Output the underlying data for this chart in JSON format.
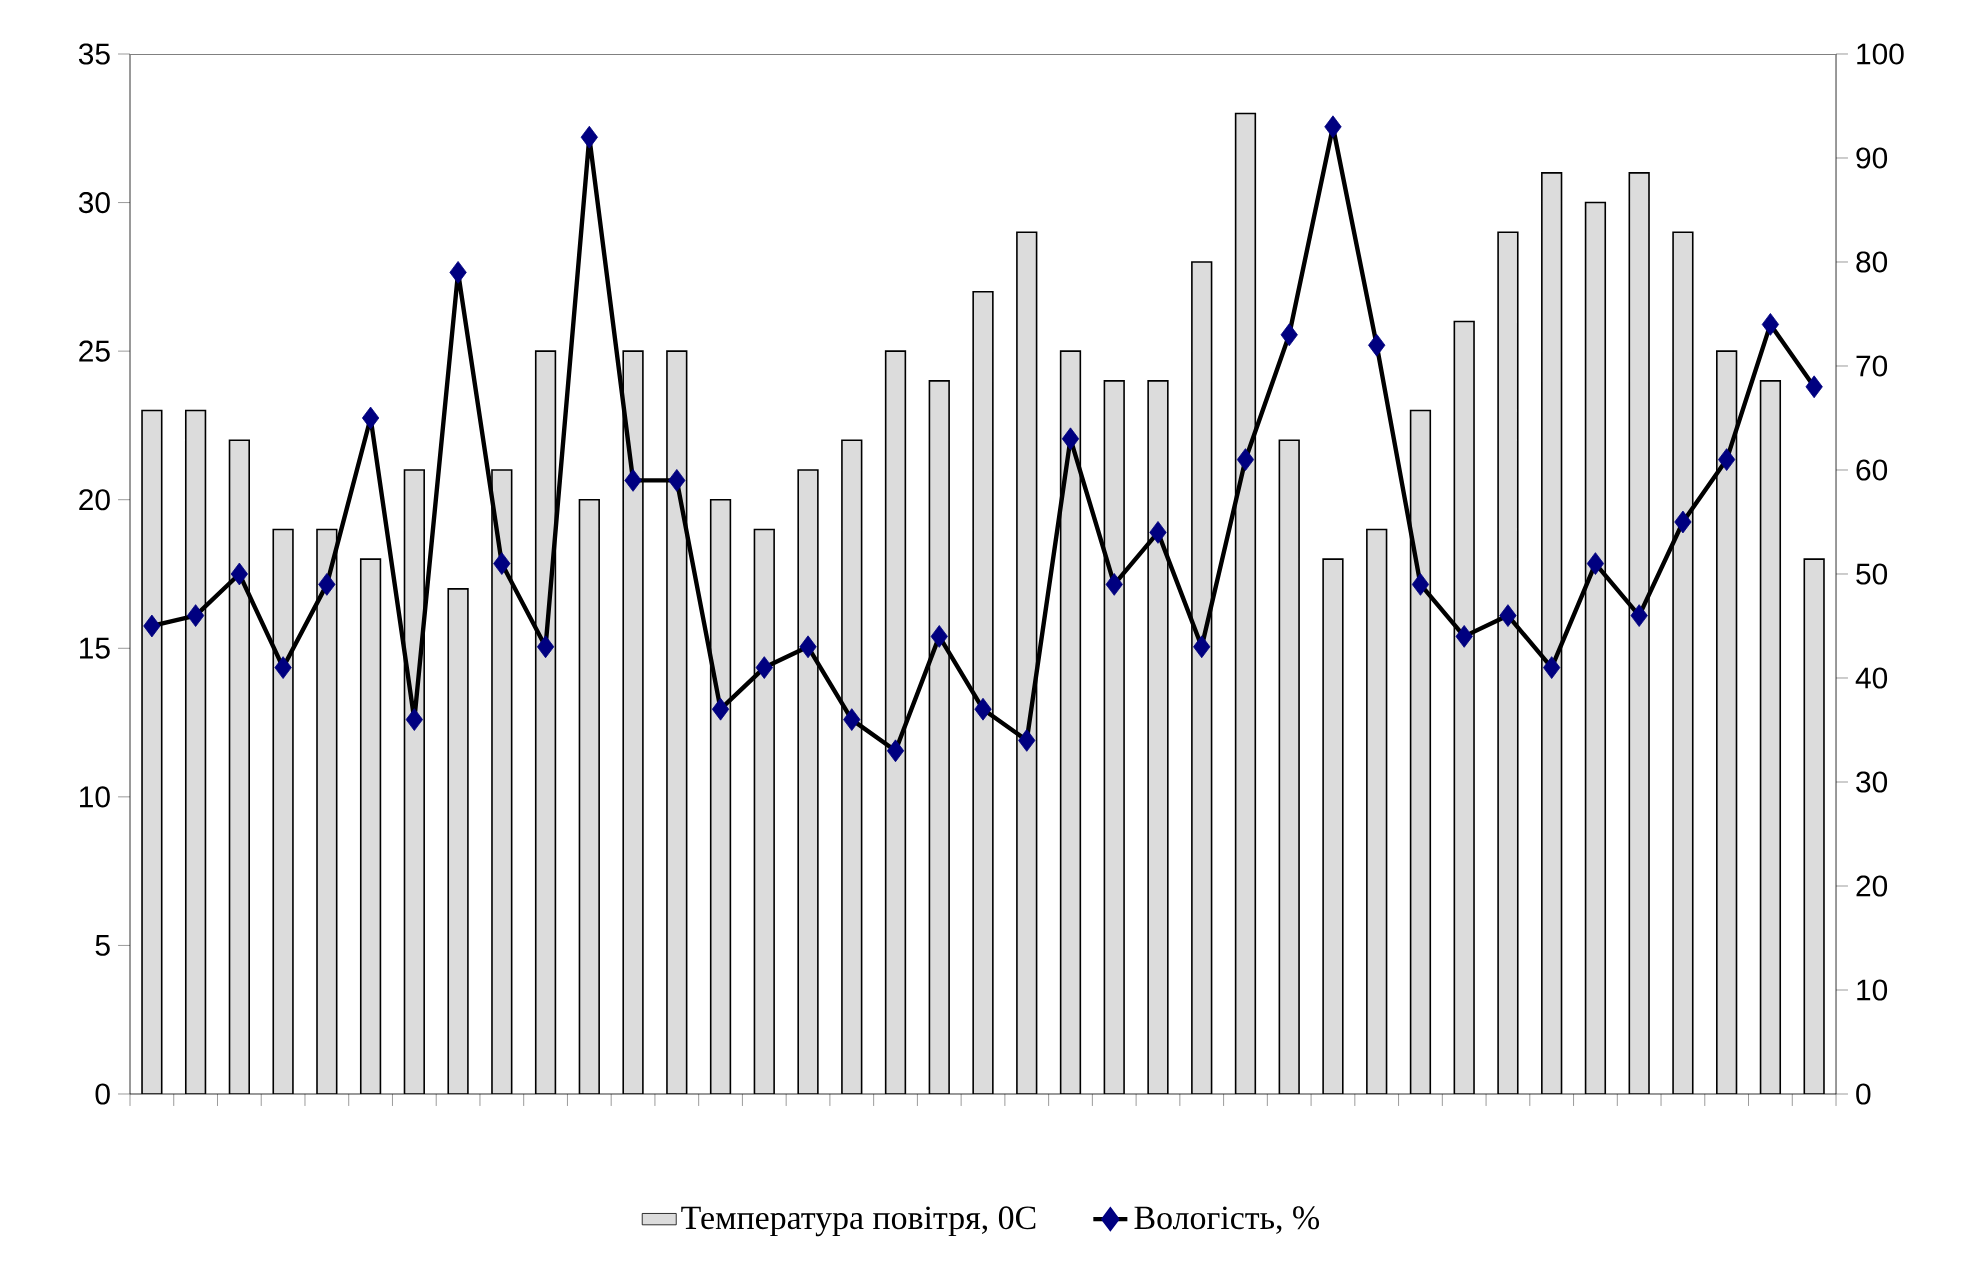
{
  "chart_data": {
    "type": "bar",
    "categories": [
      null,
      null,
      null,
      null,
      null,
      null,
      null,
      null,
      null,
      null,
      null,
      null,
      null,
      null,
      null,
      null,
      null,
      null,
      null,
      null,
      null,
      null,
      null,
      null,
      null,
      null,
      null,
      null,
      null,
      null,
      null,
      null,
      null,
      null,
      null,
      null,
      null,
      null,
      null
    ],
    "series": [
      {
        "name": "Температура повітря, 0С",
        "color": "#dcdcdc",
        "values": [
          23,
          23,
          22,
          19,
          19,
          18,
          21,
          17,
          21,
          25,
          20,
          25,
          25,
          20,
          19,
          21,
          22,
          25,
          24,
          27,
          29,
          25,
          24,
          24,
          28,
          33,
          22,
          18,
          19,
          23,
          26,
          29,
          31,
          30,
          31,
          29,
          25,
          24,
          18
        ]
      },
      {
        "name": "Вологість, %",
        "type": "line",
        "axis": "y2",
        "color": "#000080",
        "marker": "diamond",
        "values": [
          45,
          46,
          50,
          41,
          49,
          65,
          36,
          79,
          51,
          43,
          92,
          59,
          59,
          37,
          41,
          43,
          36,
          33,
          44,
          37,
          34,
          63,
          49,
          54,
          43,
          61,
          73,
          93,
          72,
          49,
          44,
          46,
          41,
          51,
          46,
          55,
          61,
          74,
          68
        ]
      }
    ],
    "ylim": [
      0,
      35
    ],
    "yticks": [
      0,
      5,
      10,
      15,
      20,
      25,
      30,
      35
    ],
    "y2lim": [
      0,
      100
    ],
    "y2ticks": [
      0,
      10,
      20,
      30,
      40,
      50,
      60,
      70,
      80,
      90,
      100
    ],
    "grid": false,
    "legend": "bottom"
  }
}
